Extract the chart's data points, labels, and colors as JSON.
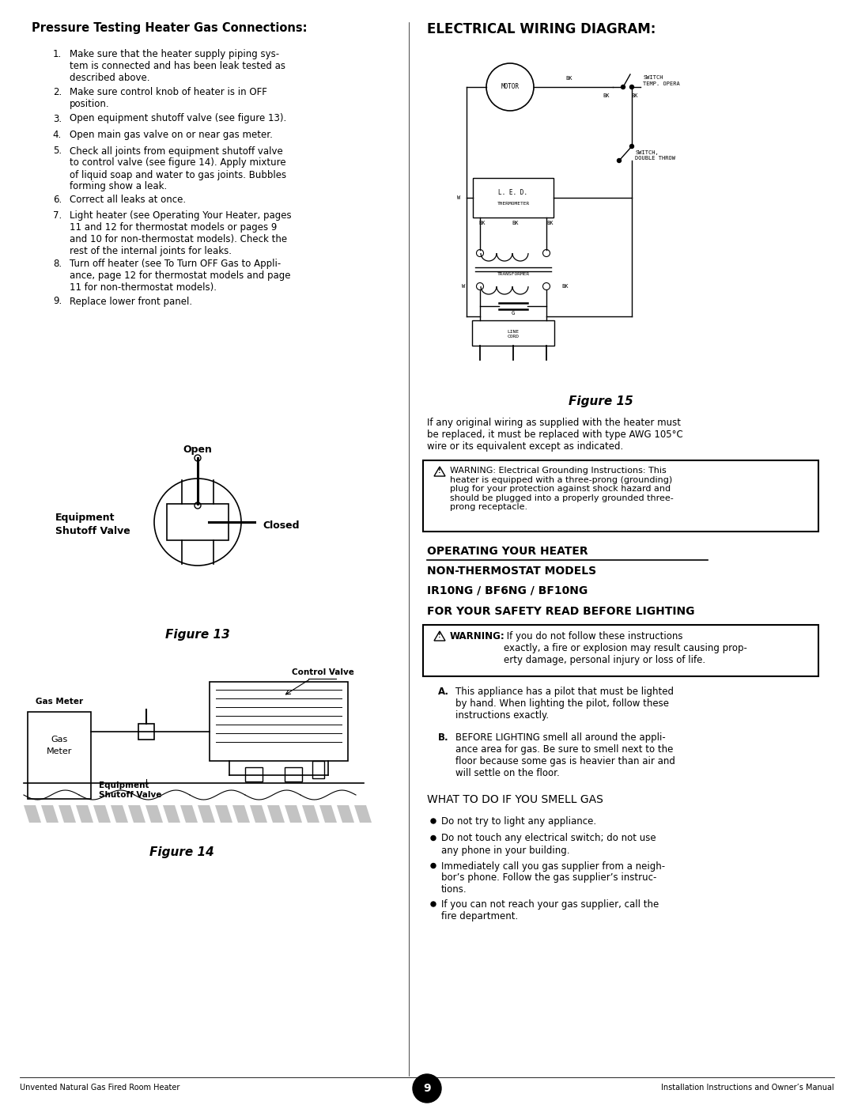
{
  "page_bg": "#ffffff",
  "pressure_title": "Pressure Testing Heater Gas Connections:",
  "pressure_items": [
    "Make sure that the heater supply piping sys-\ntem is connected and has been leak tested as\ndescribed above.",
    "Make sure control knob of heater is in OFF\nposition.",
    "Open equipment shutoff valve (see figure 13).",
    "Open main gas valve on or near gas meter.",
    "Check all joints from equipment shutoff valve\nto control valve (see figure 14). Apply mixture\nof liquid soap and water to gas joints. Bubbles\nforming show a leak.",
    "Correct all leaks at once.",
    "Light heater (see Operating Your Heater, pages\n11 and 12 for thermostat models or pages 9\nand 10 for non-thermostat models). Check the\nrest of the internal joints for leaks.",
    "Turn off heater (see To Turn OFF Gas to Appli-\nance, page 12 for thermostat models and page\n11 for non-thermostat models).",
    "Replace lower front panel."
  ],
  "pressure_italic_7": "Operating Your Heater",
  "pressure_italic_8": "To Turn OFF Gas to Appli-\nance",
  "electrical_title": "ELECTRICAL WIRING DIAGRAM:",
  "figure13_caption": "Figure 13",
  "figure14_caption": "Figure 14",
  "figure15_caption": "Figure 15",
  "figure15_text": "If any original wiring as supplied with the heater must\nbe replaced, it must be replaced with type AWG 105°C\nwire or its equivalent except as indicated.",
  "warning1_text": "WARNING: Electrical Grounding Instructions: This\nheater is equipped with a three-prong (grounding)\nplug for your protection against shock hazard and\nshould be plugged into a properly grounded three-\nprong receptacle.",
  "operating_title": "OPERATING YOUR HEATER",
  "non_thermo_title": "NON-THERMOSTAT MODELS",
  "model_title": "IR10NG / BF6NG / BF10NG",
  "safety_title": "FOR YOUR SAFETY READ BEFORE LIGHTING",
  "warning2_text": "WARNING: If you do not follow these instructions\nexactly, a fire or explosion may result causing prop-\nerty damage, personal injury or loss of life.",
  "item_a": "This appliance has a pilot that must be lighted\nby hand. When lighting the pilot, follow these\ninstructions exactly.",
  "item_b": "BEFORE LIGHTING smell all around the appli-\nance area for gas. Be sure to smell next to the\nfloor because some gas is heavier than air and\nwill settle on the floor.",
  "smell_gas_title": "WHAT TO DO IF YOU SMELL GAS",
  "smell_items": [
    "Do not try to light any appliance.",
    "Do not touch any electrical switch; do not use\nany phone in your building.",
    "Immediately call you gas supplier from a neigh-\nbor’s phone. Follow the gas supplier’s instruc-\ntions.",
    "If you can not reach your gas supplier, call the\nfire department."
  ],
  "footer_left": "Unvented Natural Gas Fired Room Heater",
  "footer_center": "9",
  "footer_right": "Installation Instructions and Owner’s Manual"
}
